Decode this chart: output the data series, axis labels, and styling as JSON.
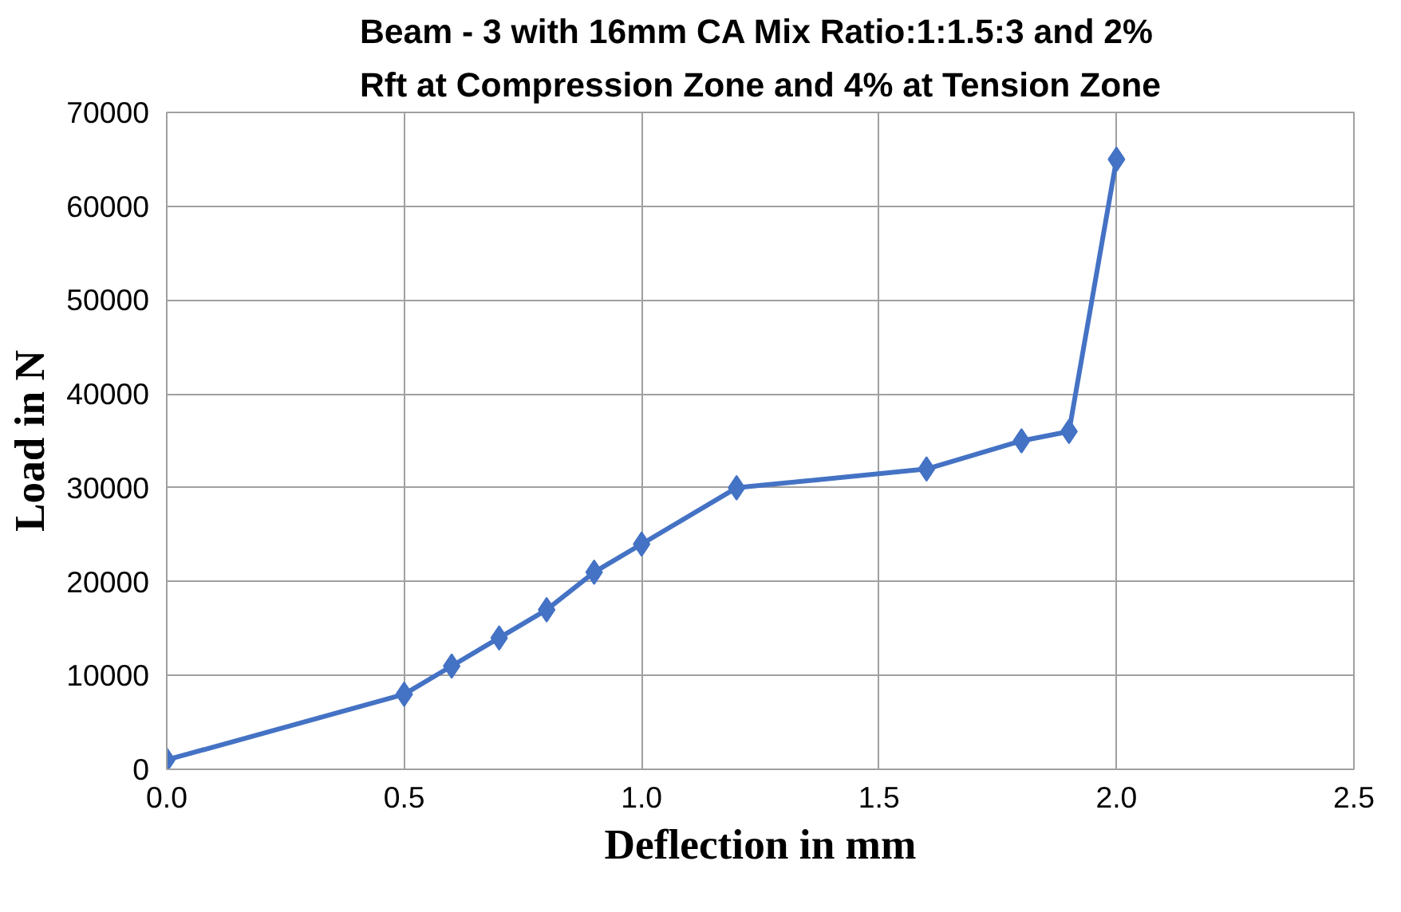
{
  "chart_data": {
    "type": "line",
    "title": "Beam - 3 with 16mm CA Mix Ratio:1:1.5:3 and 2% Rft at Compression Zone and 4% at Tension Zone",
    "xlabel": "Deflection in mm",
    "ylabel": "Load in N",
    "x": [
      0.0,
      0.5,
      0.6,
      0.7,
      0.8,
      0.9,
      1.0,
      1.2,
      1.6,
      1.8,
      1.9,
      2.0
    ],
    "series": [
      {
        "color": "#4472c4",
        "values": [
          1000,
          8000,
          11000,
          14000,
          17000,
          21000,
          24000,
          30000,
          32000,
          35000,
          36000,
          65000
        ]
      }
    ],
    "xlim": [
      0,
      2.5
    ],
    "xticks": [
      {
        "value": 0,
        "label": "0.0"
      },
      {
        "value": 0.5,
        "label": "0.5"
      },
      {
        "value": 1,
        "label": "1.0"
      },
      {
        "value": 1.5,
        "label": "1.5"
      },
      {
        "value": 2,
        "label": "2.0"
      },
      {
        "value": 2.5,
        "label": "2.5"
      }
    ],
    "ylim": [
      0,
      70000
    ],
    "yticks": [
      0,
      10000,
      20000,
      30000,
      40000,
      50000,
      60000,
      70000
    ],
    "grid": true,
    "marker": "diamond",
    "line_style": "solid"
  }
}
